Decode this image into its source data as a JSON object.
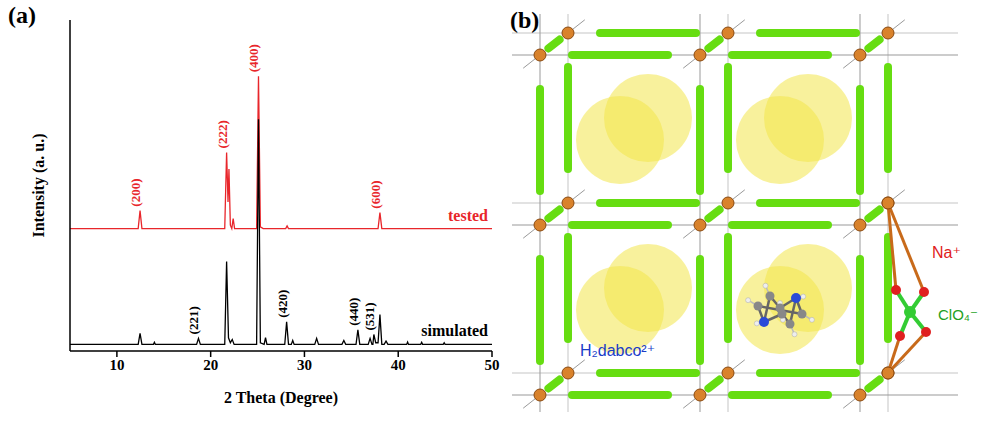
{
  "chart_data": {
    "type": "line",
    "panel_label": "(a)",
    "x_label": "2 Theta (Degree)",
    "y_label": "Intensity (a. u.)",
    "xlim": [
      5,
      50
    ],
    "xticks": [
      10,
      20,
      30,
      40,
      50
    ],
    "ylim": [
      0,
      100
    ],
    "tick_labels": "x",
    "grid": false,
    "series": [
      {
        "name": "tested",
        "color": "#e8262b",
        "x": [
          5,
          12.27,
          12.47,
          12.67,
          21.5,
          21.7,
          21.85,
          21.95,
          22.1,
          22.25,
          22.4,
          22.55,
          24.9,
          25.1,
          25.3,
          25.6,
          28.0,
          28.15,
          28.3,
          37.85,
          38.05,
          38.25,
          50
        ],
        "values": [
          37,
          37,
          42.4,
          37,
          37,
          60,
          45,
          55,
          38,
          37,
          40,
          37,
          37,
          83,
          37.5,
          37,
          37,
          37.8,
          37,
          37,
          41.8,
          37,
          37
        ]
      },
      {
        "name": "simulated",
        "color": "#000000",
        "x": [
          5,
          12.27,
          12.47,
          12.67,
          13.9,
          14.0,
          14.1,
          18.5,
          18.7,
          18.9,
          21.5,
          21.7,
          21.9,
          22.1,
          22.3,
          22.5,
          24.9,
          25.1,
          25.3,
          25.7,
          25.85,
          26.0,
          27.9,
          28.1,
          28.3,
          28.6,
          28.75,
          28.9,
          31.1,
          31.3,
          31.5,
          34.0,
          34.2,
          34.4,
          35.5,
          35.7,
          35.9,
          36.8,
          37.0,
          37.2,
          37.3,
          37.4,
          37.6,
          37.85,
          38.05,
          38.25,
          38.5,
          38.7,
          38.9,
          40.9,
          41.0,
          41.1,
          42.4,
          42.5,
          42.6,
          44.8,
          44.9,
          45.0,
          50
        ],
        "values": [
          2,
          2,
          5.3,
          2,
          2,
          2.6,
          2,
          2,
          3.8,
          2,
          2,
          27,
          4,
          2.5,
          3.5,
          2,
          2,
          70,
          2.5,
          2,
          4,
          2,
          2,
          8.8,
          2,
          2,
          3.2,
          2,
          2,
          3.8,
          2,
          2,
          3.2,
          2,
          2,
          6.4,
          2,
          2,
          3.8,
          2,
          2,
          5,
          2.5,
          2.5,
          11,
          2,
          2,
          3,
          2,
          2,
          2.7,
          2,
          2,
          2.6,
          2,
          2,
          2.5,
          2,
          2
        ]
      }
    ],
    "annotations": [
      {
        "text": "(200)",
        "x": 12.47,
        "series": "tested"
      },
      {
        "text": "(222)",
        "x": 21.7,
        "series": "tested"
      },
      {
        "text": "(400)",
        "x": 25.1,
        "series": "tested"
      },
      {
        "text": "(600)",
        "x": 38.05,
        "series": "tested"
      },
      {
        "text": "(221)",
        "x": 18.7,
        "series": "simulated"
      },
      {
        "text": "(420)",
        "x": 28.1,
        "series": "simulated"
      },
      {
        "text": "(440)",
        "x": 35.7,
        "series": "simulated"
      },
      {
        "text": "(531)",
        "x": 37.4,
        "series": "simulated"
      }
    ]
  },
  "diagram": {
    "panel_label": "(b)",
    "labels": [
      "Na⁺",
      "ClO₄⁻",
      "H₂dabco²⁺"
    ]
  }
}
